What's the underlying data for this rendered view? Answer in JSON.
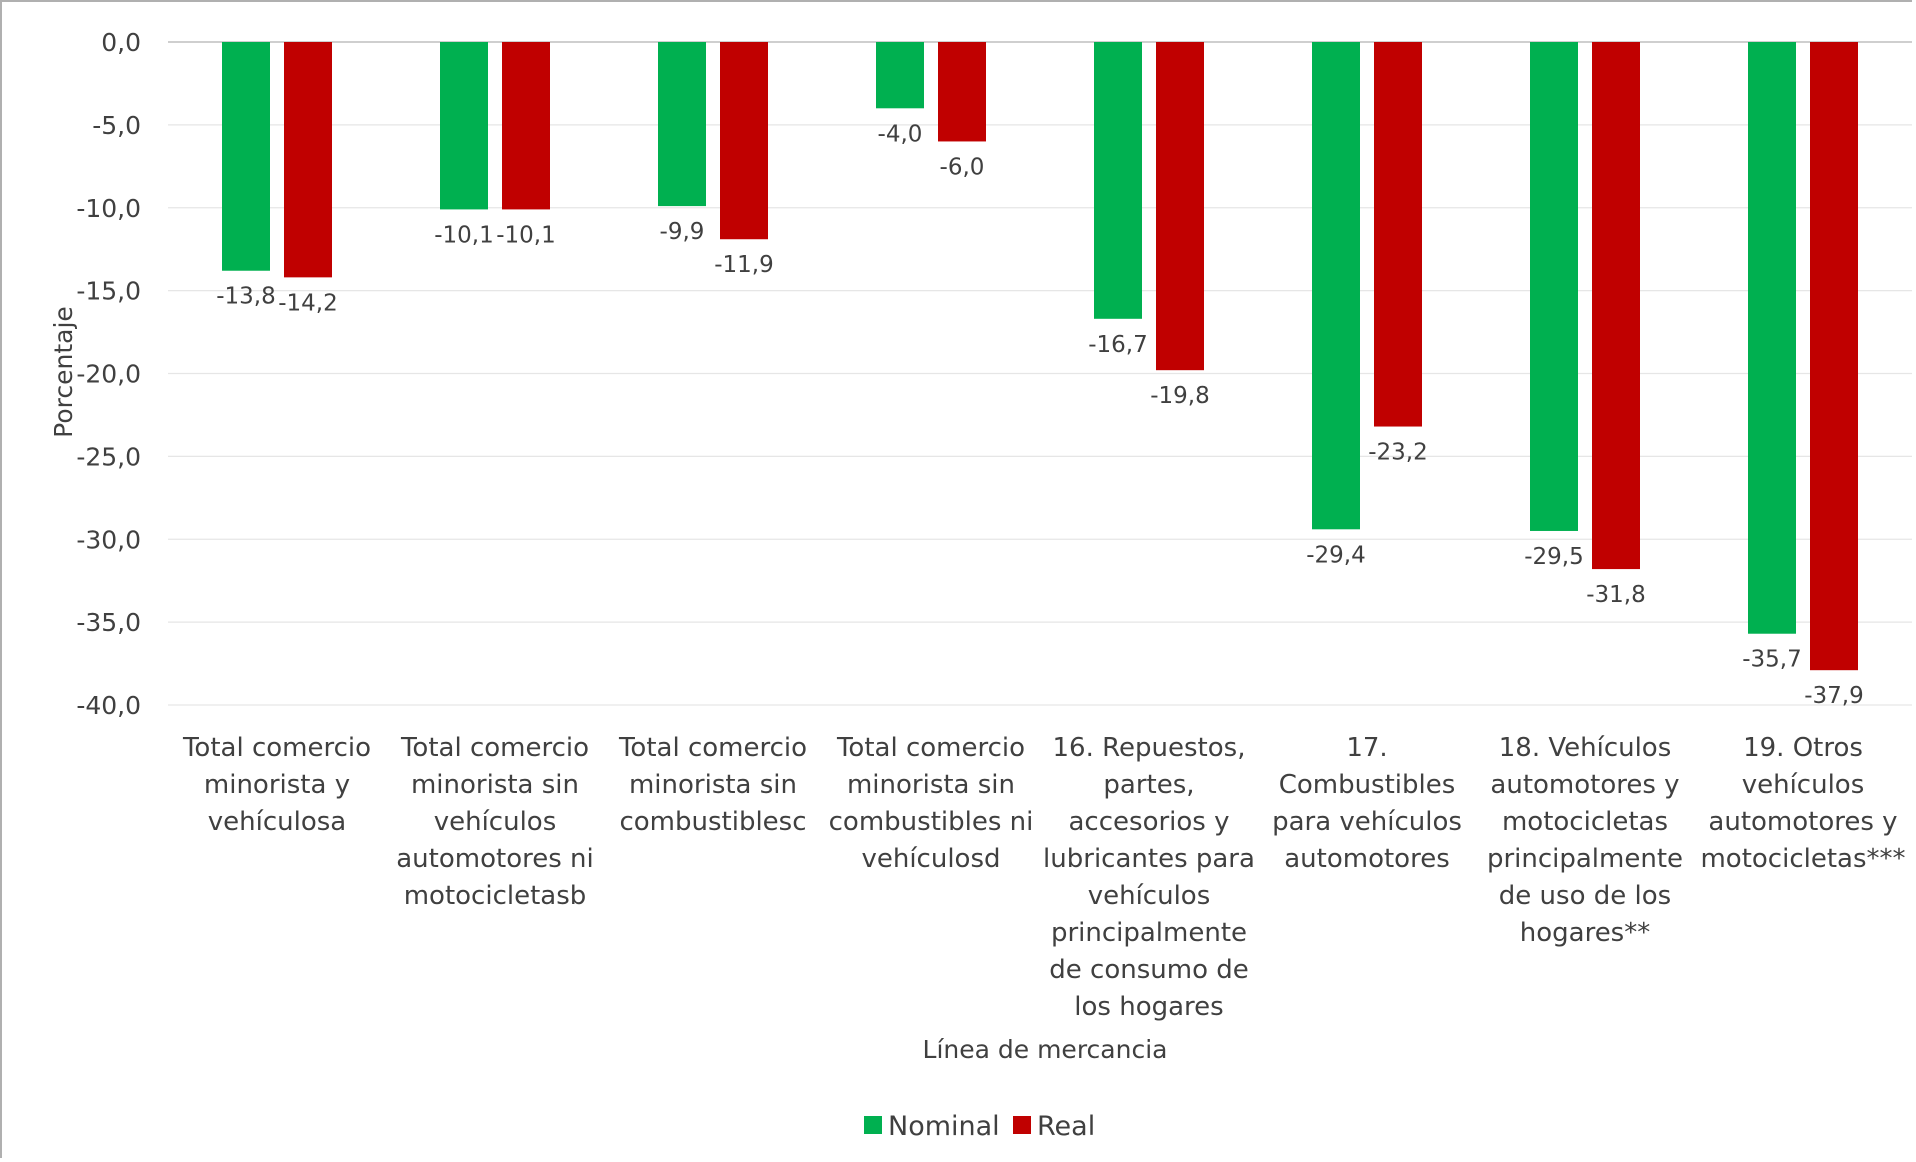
{
  "chart_data": {
    "type": "bar",
    "xlabel": "Línea de mercancia",
    "ylabel": "Porcentaje",
    "ylim": [
      -40,
      0
    ],
    "yticks": [
      0,
      -5,
      -10,
      -15,
      -20,
      -25,
      -30,
      -35,
      -40
    ],
    "ytick_labels": [
      "0,0",
      "-5,0",
      "-10,0",
      "-15,0",
      "-20,0",
      "-25,0",
      "-30,0",
      "-35,0",
      "-40,0"
    ],
    "grid": true,
    "legend_position": "bottom",
    "categories": [
      [
        "Total comercio",
        "minorista y",
        "vehículosa"
      ],
      [
        "Total comercio",
        "minorista sin",
        "vehículos",
        "automotores ni",
        "motocicletasb"
      ],
      [
        "Total comercio",
        "minorista sin",
        "combustiblesc"
      ],
      [
        "Total comercio",
        "minorista sin",
        "combustibles ni",
        "vehículosd"
      ],
      [
        "16. Repuestos,",
        "partes,",
        "accesorios y",
        "lubricantes para",
        "vehículos",
        "principalmente",
        "de consumo de",
        "los hogares"
      ],
      [
        "17.",
        "Combustibles",
        "para vehículos",
        "automotores"
      ],
      [
        "18. Vehículos",
        "automotores y",
        "motocicletas",
        "principalmente",
        "de uso de los",
        "hogares**"
      ],
      [
        "19. Otros",
        "vehículos",
        "automotores y",
        "motocicletas***"
      ]
    ],
    "series": [
      {
        "name": "Nominal",
        "color": "#00b050",
        "values": [
          -13.8,
          -10.1,
          -9.9,
          -4.0,
          -16.7,
          -29.4,
          -29.5,
          -35.7
        ],
        "labels": [
          "-13,8",
          "-10,1",
          "-9,9",
          "-4,0",
          "-16,7",
          "-29,4",
          "-29,5",
          "-35,7"
        ]
      },
      {
        "name": "Real",
        "color": "#c00000",
        "values": [
          -14.2,
          -10.1,
          -11.9,
          -6.0,
          -19.8,
          -23.2,
          -31.8,
          -37.9
        ],
        "labels": [
          "-14,2",
          "-10,1",
          "-11,9",
          "-6,0",
          "-19,8",
          "-23,2",
          "-31,8",
          "-37,9"
        ]
      }
    ]
  }
}
